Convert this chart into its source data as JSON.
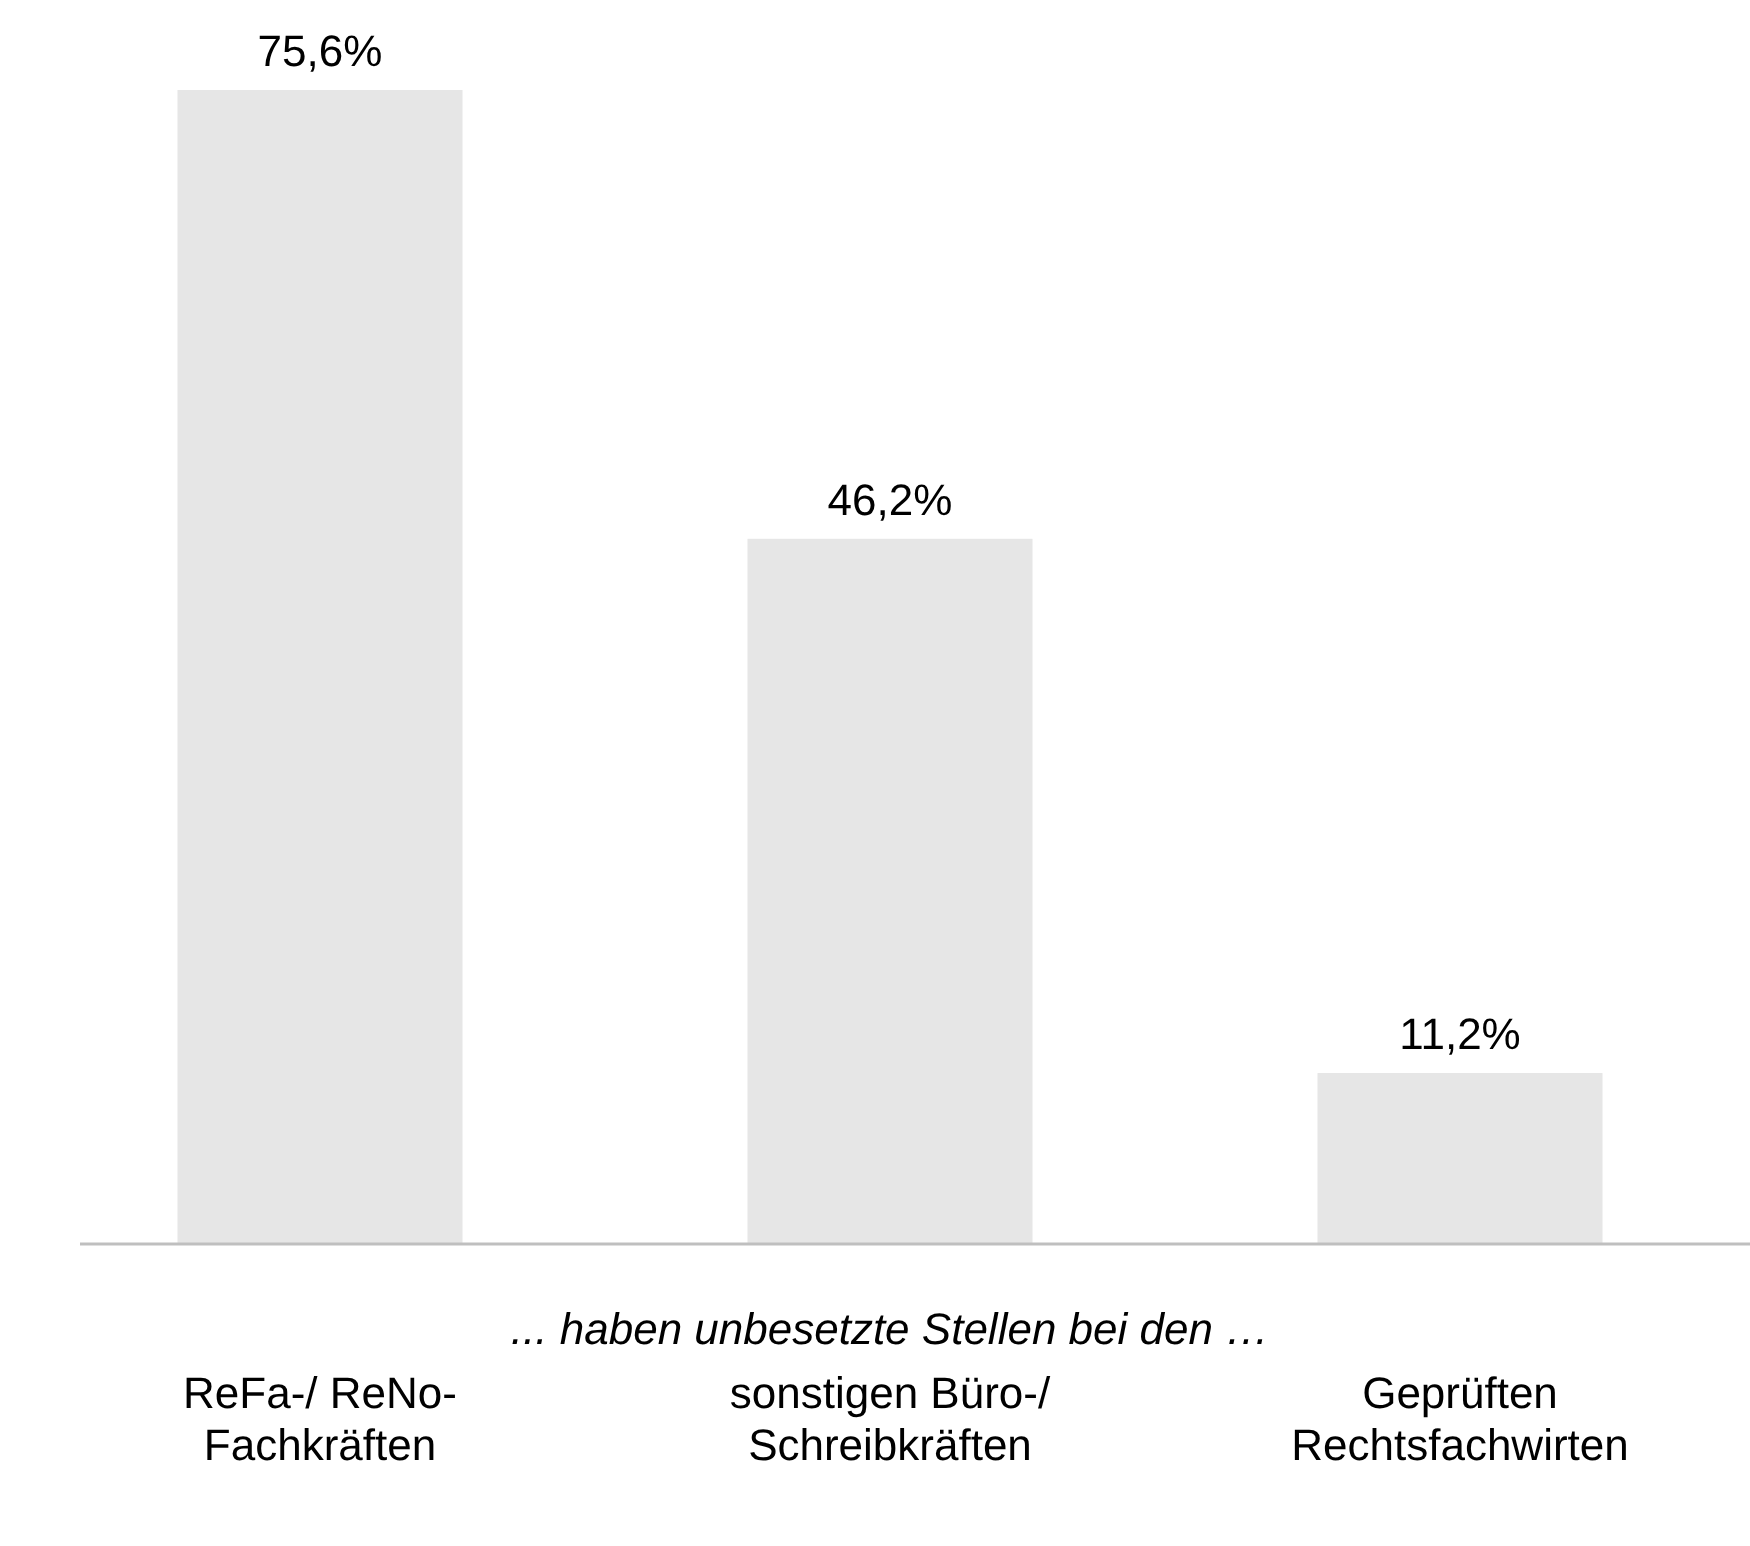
{
  "chart_data": {
    "type": "bar",
    "xlabel": "... haben unbesetzte Stellen bei den …",
    "categories": [
      "ReFa-/ ReNo-\nFachkräften",
      "sonstigen Büro-/\nSchreibkräften",
      "Geprüften\nRechtsfachwirten"
    ],
    "values": [
      75.6,
      46.2,
      11.2
    ],
    "value_labels": [
      "75,6%",
      "46,2%",
      "11,2%"
    ],
    "color": "#e6e6e6",
    "tick_labels": "x"
  }
}
